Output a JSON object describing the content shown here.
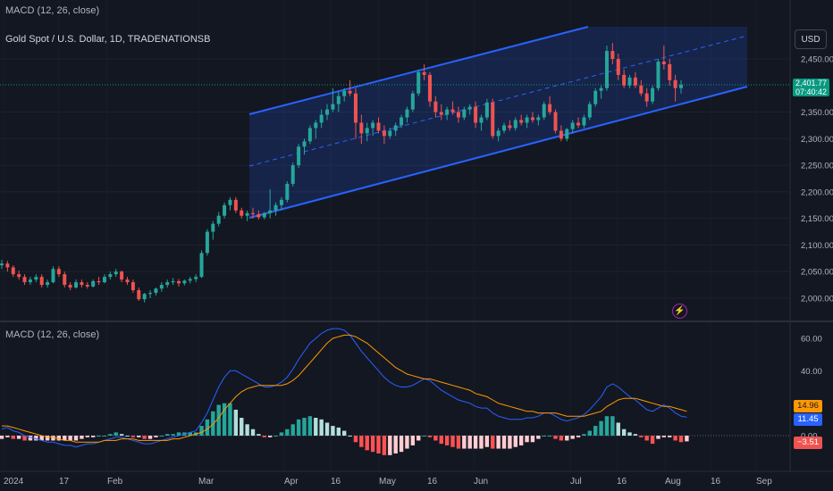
{
  "header": {
    "top_indicator_label": "MACD (12, 26, close)",
    "symbol_title": "Gold Spot / U.S. Dollar, 1D, TRADENATIONSB",
    "currency_button": "USD"
  },
  "price_axis": {
    "ticks": [
      "2,450.00",
      "2,350.00",
      "2,300.00",
      "2,250.00",
      "2,200.00",
      "2,150.00",
      "2,100.00",
      "2,050.00",
      "2,000.00"
    ],
    "current_price": "2,401.77",
    "countdown": "07:40:42"
  },
  "macd_panel": {
    "label": "MACD (12, 26, close)",
    "ticks": [
      "60.00",
      "40.00",
      "0.00"
    ],
    "signal_value": "14.96",
    "macd_value": "11.45",
    "hist_value": "−3.51"
  },
  "time_axis": {
    "labels": [
      "2024",
      "17",
      "Feb",
      "Mar",
      "Apr",
      "16",
      "May",
      "16",
      "Jun",
      "Jul",
      "16",
      "Aug",
      "16",
      "Sep"
    ]
  },
  "colors": {
    "background": "#131722",
    "up": "#26a69a",
    "down": "#ef5350",
    "channel_line": "#2962ff",
    "macd_line": "#2962ff",
    "signal_line": "#ff9800",
    "price_tag": "#089981"
  },
  "chart_data": {
    "type": "candlestick",
    "price_range": [
      1980,
      2510
    ],
    "candles": [
      [
        2062,
        2072,
        2055,
        2065
      ],
      [
        2065,
        2070,
        2050,
        2058
      ],
      [
        2058,
        2062,
        2040,
        2045
      ],
      [
        2045,
        2052,
        2035,
        2040
      ],
      [
        2040,
        2045,
        2025,
        2030
      ],
      [
        2030,
        2040,
        2025,
        2035
      ],
      [
        2035,
        2045,
        2030,
        2040
      ],
      [
        2040,
        2045,
        2020,
        2025
      ],
      [
        2025,
        2035,
        2020,
        2030
      ],
      [
        2030,
        2060,
        2028,
        2055
      ],
      [
        2055,
        2060,
        2040,
        2045
      ],
      [
        2045,
        2050,
        2020,
        2025
      ],
      [
        2025,
        2030,
        2015,
        2020
      ],
      [
        2020,
        2035,
        2018,
        2030
      ],
      [
        2030,
        2035,
        2020,
        2025
      ],
      [
        2025,
        2030,
        2018,
        2022
      ],
      [
        2022,
        2035,
        2020,
        2032
      ],
      [
        2032,
        2040,
        2025,
        2030
      ],
      [
        2030,
        2045,
        2028,
        2040
      ],
      [
        2040,
        2050,
        2035,
        2045
      ],
      [
        2045,
        2055,
        2040,
        2050
      ],
      [
        2050,
        2052,
        2030,
        2035
      ],
      [
        2035,
        2040,
        2025,
        2030
      ],
      [
        2030,
        2035,
        2010,
        2015
      ],
      [
        2015,
        2020,
        1995,
        1998
      ],
      [
        1998,
        2010,
        1992,
        2008
      ],
      [
        2008,
        2015,
        2000,
        2010
      ],
      [
        2010,
        2020,
        2005,
        2018
      ],
      [
        2018,
        2030,
        2012,
        2025
      ],
      [
        2025,
        2035,
        2020,
        2030
      ],
      [
        2030,
        2038,
        2025,
        2032
      ],
      [
        2032,
        2036,
        2022,
        2028
      ],
      [
        2028,
        2035,
        2024,
        2033
      ],
      [
        2033,
        2040,
        2028,
        2036
      ],
      [
        2036,
        2045,
        2030,
        2040
      ],
      [
        2040,
        2090,
        2038,
        2085
      ],
      [
        2085,
        2130,
        2080,
        2125
      ],
      [
        2125,
        2145,
        2110,
        2140
      ],
      [
        2140,
        2162,
        2135,
        2155
      ],
      [
        2155,
        2180,
        2150,
        2175
      ],
      [
        2175,
        2190,
        2165,
        2185
      ],
      [
        2185,
        2190,
        2160,
        2165
      ],
      [
        2165,
        2170,
        2150,
        2155
      ],
      [
        2155,
        2165,
        2145,
        2160
      ],
      [
        2160,
        2170,
        2150,
        2158
      ],
      [
        2158,
        2165,
        2148,
        2152
      ],
      [
        2152,
        2162,
        2148,
        2160
      ],
      [
        2160,
        2205,
        2150,
        2165
      ],
      [
        2165,
        2180,
        2155,
        2175
      ],
      [
        2175,
        2190,
        2165,
        2185
      ],
      [
        2185,
        2220,
        2180,
        2215
      ],
      [
        2215,
        2255,
        2210,
        2250
      ],
      [
        2250,
        2290,
        2245,
        2285
      ],
      [
        2285,
        2300,
        2270,
        2295
      ],
      [
        2295,
        2325,
        2290,
        2320
      ],
      [
        2320,
        2335,
        2300,
        2330
      ],
      [
        2330,
        2355,
        2320,
        2345
      ],
      [
        2345,
        2365,
        2335,
        2355
      ],
      [
        2355,
        2395,
        2350,
        2365
      ],
      [
        2365,
        2390,
        2350,
        2380
      ],
      [
        2380,
        2395,
        2370,
        2390
      ],
      [
        2390,
        2410,
        2380,
        2385
      ],
      [
        2385,
        2395,
        2300,
        2330
      ],
      [
        2330,
        2345,
        2290,
        2310
      ],
      [
        2310,
        2330,
        2295,
        2320
      ],
      [
        2320,
        2335,
        2305,
        2330
      ],
      [
        2330,
        2340,
        2310,
        2315
      ],
      [
        2315,
        2325,
        2290,
        2305
      ],
      [
        2305,
        2320,
        2300,
        2315
      ],
      [
        2315,
        2330,
        2305,
        2325
      ],
      [
        2325,
        2345,
        2320,
        2340
      ],
      [
        2340,
        2360,
        2330,
        2355
      ],
      [
        2355,
        2390,
        2350,
        2385
      ],
      [
        2385,
        2430,
        2380,
        2425
      ],
      [
        2425,
        2440,
        2410,
        2420
      ],
      [
        2420,
        2425,
        2360,
        2370
      ],
      [
        2370,
        2380,
        2340,
        2350
      ],
      [
        2350,
        2365,
        2335,
        2345
      ],
      [
        2345,
        2360,
        2335,
        2355
      ],
      [
        2355,
        2370,
        2345,
        2350
      ],
      [
        2350,
        2360,
        2330,
        2340
      ],
      [
        2340,
        2360,
        2335,
        2355
      ],
      [
        2355,
        2365,
        2345,
        2360
      ],
      [
        2360,
        2370,
        2320,
        2330
      ],
      [
        2330,
        2345,
        2315,
        2340
      ],
      [
        2340,
        2375,
        2335,
        2368
      ],
      [
        2368,
        2375,
        2300,
        2305
      ],
      [
        2305,
        2320,
        2295,
        2315
      ],
      [
        2315,
        2330,
        2310,
        2325
      ],
      [
        2325,
        2335,
        2315,
        2320
      ],
      [
        2320,
        2340,
        2315,
        2335
      ],
      [
        2335,
        2345,
        2325,
        2330
      ],
      [
        2330,
        2345,
        2320,
        2340
      ],
      [
        2340,
        2350,
        2330,
        2335
      ],
      [
        2335,
        2345,
        2325,
        2340
      ],
      [
        2340,
        2370,
        2335,
        2365
      ],
      [
        2365,
        2380,
        2345,
        2350
      ],
      [
        2350,
        2355,
        2310,
        2315
      ],
      [
        2315,
        2325,
        2295,
        2300
      ],
      [
        2300,
        2320,
        2295,
        2318
      ],
      [
        2318,
        2335,
        2310,
        2330
      ],
      [
        2330,
        2340,
        2320,
        2325
      ],
      [
        2325,
        2345,
        2320,
        2340
      ],
      [
        2340,
        2370,
        2335,
        2365
      ],
      [
        2365,
        2395,
        2360,
        2390
      ],
      [
        2390,
        2400,
        2375,
        2395
      ],
      [
        2395,
        2475,
        2390,
        2465
      ],
      [
        2465,
        2480,
        2440,
        2450
      ],
      [
        2450,
        2460,
        2410,
        2420
      ],
      [
        2420,
        2430,
        2395,
        2400
      ],
      [
        2400,
        2420,
        2395,
        2415
      ],
      [
        2415,
        2425,
        2395,
        2400
      ],
      [
        2400,
        2410,
        2380,
        2385
      ],
      [
        2385,
        2395,
        2360,
        2370
      ],
      [
        2370,
        2400,
        2365,
        2395
      ],
      [
        2395,
        2450,
        2390,
        2445
      ],
      [
        2445,
        2475,
        2430,
        2440
      ],
      [
        2440,
        2450,
        2400,
        2410
      ],
      [
        2410,
        2420,
        2370,
        2395
      ],
      [
        2395,
        2410,
        2385,
        2401.77
      ]
    ],
    "macd": [
      4,
      5,
      3,
      2,
      0,
      -1,
      -2,
      -3,
      -4,
      -4,
      -5,
      -6,
      -6,
      -7,
      -6,
      -5,
      -5,
      -4,
      -3,
      -2,
      -1,
      -1,
      -2,
      -3,
      -4,
      -5,
      -5,
      -4,
      -3,
      -2,
      -1,
      0,
      1,
      2,
      3,
      8,
      14,
      22,
      30,
      36,
      40,
      40,
      38,
      36,
      34,
      32,
      30,
      30,
      31,
      33,
      36,
      41,
      47,
      52,
      57,
      60,
      63,
      65,
      66,
      66,
      65,
      62,
      57,
      52,
      48,
      44,
      40,
      36,
      33,
      31,
      30,
      30,
      31,
      33,
      35,
      34,
      31,
      28,
      26,
      24,
      22,
      21,
      20,
      18,
      17,
      17,
      14,
      12,
      11,
      10,
      10,
      10,
      11,
      11,
      12,
      14,
      14,
      12,
      10,
      9,
      10,
      11,
      13,
      16,
      20,
      24,
      30,
      32,
      30,
      27,
      24,
      22,
      19,
      16,
      15,
      17,
      19,
      17,
      14,
      12,
      11.45
    ],
    "signal": [
      6,
      6,
      5,
      4,
      3,
      2,
      1,
      0,
      -1,
      -1,
      -2,
      -3,
      -3,
      -4,
      -4,
      -4,
      -4,
      -4,
      -3,
      -3,
      -3,
      -2,
      -2,
      -2,
      -3,
      -3,
      -3,
      -3,
      -3,
      -3,
      -2,
      -2,
      -1,
      0,
      1,
      2,
      4,
      7,
      11,
      16,
      20,
      24,
      27,
      29,
      30,
      31,
      31,
      31,
      31,
      31,
      32,
      34,
      37,
      41,
      45,
      49,
      53,
      57,
      60,
      61,
      62,
      62,
      61,
      59,
      57,
      54,
      51,
      48,
      45,
      42,
      40,
      38,
      37,
      36,
      35,
      35,
      34,
      33,
      32,
      31,
      30,
      29,
      28,
      26,
      25,
      24,
      22,
      20,
      19,
      18,
      17,
      16,
      15,
      15,
      14,
      14,
      14,
      14,
      13,
      12,
      12,
      12,
      12,
      13,
      14,
      15,
      18,
      20,
      22,
      23,
      23,
      23,
      22,
      21,
      20,
      19,
      18,
      18,
      17,
      16,
      14.96
    ],
    "hist": [
      -2,
      -1,
      -2,
      -2,
      -3,
      -3,
      -3,
      -3,
      -3,
      -3,
      -3,
      -3,
      -3,
      -3,
      -2,
      -1,
      -1,
      0,
      0,
      1,
      2,
      1,
      0,
      -1,
      -1,
      -2,
      -2,
      -1,
      0,
      1,
      1,
      2,
      2,
      2,
      2,
      6,
      10,
      15,
      19,
      20,
      20,
      16,
      11,
      7,
      4,
      1,
      -1,
      -1,
      0,
      2,
      4,
      7,
      10,
      11,
      12,
      11,
      10,
      8,
      6,
      5,
      3,
      0,
      -4,
      -7,
      -9,
      -10,
      -11,
      -12,
      -12,
      -11,
      -10,
      -8,
      -6,
      -3,
      0,
      -1,
      -3,
      -5,
      -6,
      -7,
      -8,
      -8,
      -8,
      -8,
      -8,
      -7,
      -8,
      -8,
      -8,
      -8,
      -7,
      -6,
      -4,
      -4,
      -2,
      0,
      0,
      -2,
      -3,
      -3,
      -2,
      -1,
      1,
      3,
      6,
      9,
      12,
      12,
      8,
      4,
      2,
      1,
      -1,
      -3,
      -5,
      -2,
      -1,
      -1,
      -3,
      -4,
      -3.51
    ],
    "macd_range": [
      -26,
      66
    ]
  }
}
